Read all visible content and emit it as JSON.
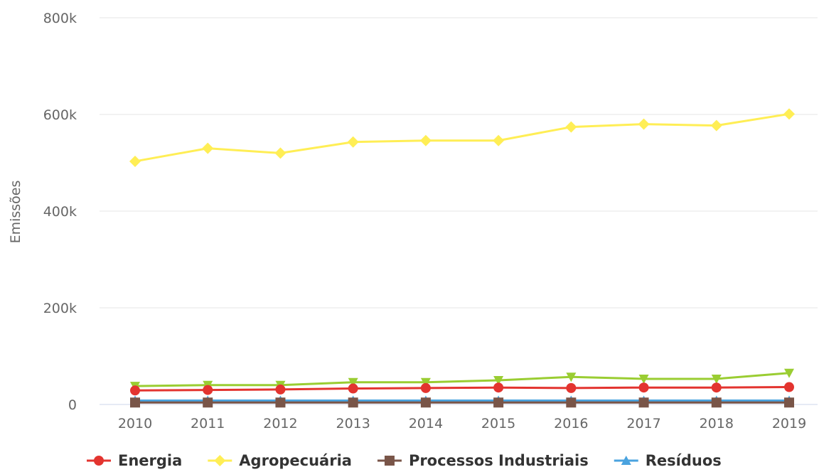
{
  "chart_data": {
    "type": "line",
    "title": "",
    "xlabel": "",
    "ylabel": "Emissões",
    "x": [
      "2010",
      "2011",
      "2012",
      "2013",
      "2014",
      "2015",
      "2016",
      "2017",
      "2018",
      "2019"
    ],
    "ylim": [
      0,
      800000
    ],
    "yticks": [
      0,
      200000,
      400000,
      600000,
      800000
    ],
    "ytick_labels": [
      "0",
      "200k",
      "400k",
      "600k",
      "800k"
    ],
    "grid": true,
    "legend_position": "bottom",
    "series": [
      {
        "name": "Energia",
        "color": "#e3342f",
        "marker": "circle",
        "values": [
          29000,
          30000,
          31000,
          33000,
          34000,
          35000,
          34000,
          35000,
          35000,
          36000
        ]
      },
      {
        "name": "Agropecuária",
        "color": "#ffee55",
        "marker": "diamond",
        "values": [
          503000,
          530000,
          520000,
          543000,
          546000,
          546000,
          574000,
          580000,
          577000,
          601000
        ]
      },
      {
        "name": "Processos Industriais",
        "color": "#795548",
        "marker": "square",
        "values": [
          4000,
          4000,
          4000,
          4000,
          4000,
          4000,
          4000,
          4000,
          4000,
          4000
        ]
      },
      {
        "name": "Resíduos",
        "color": "#4aa3df",
        "marker": "triangle",
        "values": [
          8000,
          8000,
          8000,
          8000,
          8000,
          8000,
          8000,
          8000,
          8000,
          8000
        ]
      },
      {
        "name": "",
        "color": "#9acd32",
        "marker": "triangle-down",
        "values": [
          38000,
          40000,
          40000,
          46000,
          46000,
          50000,
          57000,
          53000,
          53000,
          65000
        ]
      }
    ]
  }
}
